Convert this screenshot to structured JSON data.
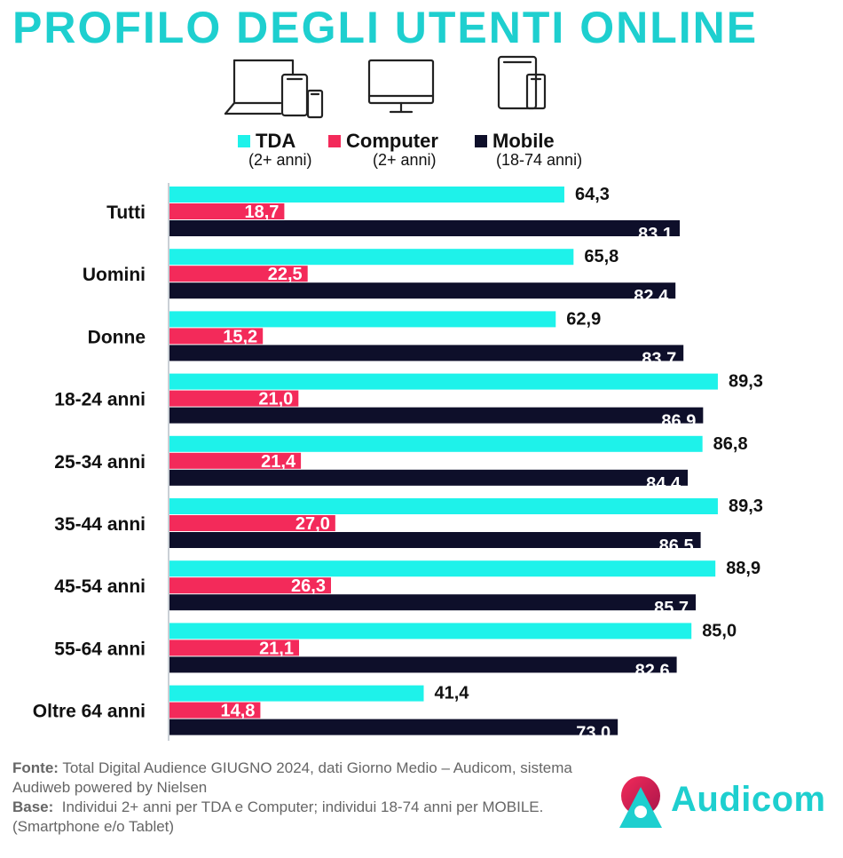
{
  "title": "PROFILO DEGLI UTENTI ONLINE",
  "icons": [
    "laptop-phone-icon",
    "monitor-icon",
    "tablet-phone-icon"
  ],
  "colors": {
    "title": "#1ecfcf",
    "tda": "#1ef2ea",
    "computer": "#f32a5a",
    "mobile": "#0e0f2a",
    "logo": "#1ecfcf"
  },
  "legend": [
    {
      "name": "TDA",
      "note": "(2+ anni)"
    },
    {
      "name": "Computer",
      "note": "(2+ anni)"
    },
    {
      "name": "Mobile",
      "note": "(18-74 anni)"
    }
  ],
  "chart_data": {
    "type": "bar",
    "orientation": "horizontal",
    "categories": [
      "Tutti",
      "Uomini",
      "Donne",
      "18-24 anni",
      "25-34 anni",
      "35-44 anni",
      "45-54 anni",
      "55-64 anni",
      "Oltre 64 anni"
    ],
    "series": [
      {
        "name": "TDA",
        "values": [
          64.3,
          65.8,
          62.9,
          89.3,
          86.8,
          89.3,
          88.9,
          85.0,
          41.4
        ]
      },
      {
        "name": "Computer",
        "values": [
          18.7,
          22.5,
          15.2,
          21.0,
          21.4,
          27.0,
          26.3,
          21.1,
          14.8
        ]
      },
      {
        "name": "Mobile",
        "values": [
          83.1,
          82.4,
          83.7,
          86.9,
          84.4,
          86.5,
          85.7,
          82.6,
          73.0
        ]
      }
    ],
    "labels": [
      [
        "64,3",
        "65,8",
        "62,9",
        "89,3",
        "86,8",
        "89,3",
        "88,9",
        "85,0",
        "41,4"
      ],
      [
        "18,7",
        "22,5",
        "15,2",
        "21,0",
        "21,4",
        "27,0",
        "26,3",
        "21,1",
        "14,8"
      ],
      [
        "83,1",
        "82,4",
        "83,7",
        "86,9",
        "84,4",
        "86,5",
        "85,7",
        "82,6",
        "73,0"
      ]
    ],
    "xlim": [
      0,
      100
    ],
    "grid": false,
    "legend_position": "top"
  },
  "footnote": {
    "fonte_label": "Fonte:",
    "fonte_text": " Total Digital Audience GIUGNO 2024, dati Giorno Medio – Audicom, sistema Audiweb powered by Nielsen",
    "base_label": "Base:",
    "base_text": "  Individui 2+ anni per TDA e Computer; individui 18-74 anni per MOBILE.(Smartphone e/o Tablet)"
  },
  "logo": {
    "text": "Audicom"
  }
}
